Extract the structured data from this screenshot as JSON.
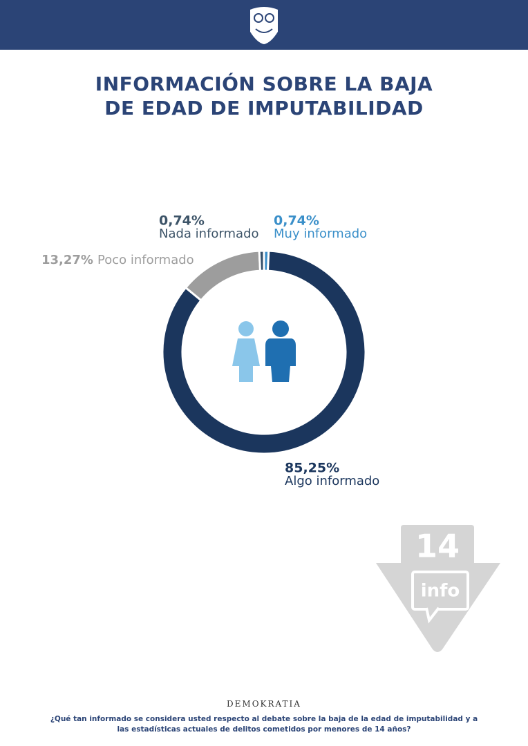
{
  "chart_data": {
    "type": "donut",
    "title": "INFORMACIÓN SOBRE LA BAJA DE EDAD DE IMPUTABILIDAD",
    "categories": [
      "Muy informado",
      "Algo informado",
      "Poco informado",
      "Nada informado"
    ],
    "values": [
      0.74,
      85.25,
      13.27,
      0.74
    ],
    "value_labels": [
      "0,74%",
      "85,25%",
      "13,27%",
      "0,74%"
    ],
    "colors": [
      "#3a8fc9",
      "#1b365d",
      "#9d9d9d",
      "#34506b"
    ]
  },
  "badge": {
    "number": "14",
    "text": "info"
  },
  "brand": "DEMOKRATIA",
  "footnote": "¿Qué tan informado se considera usted respecto al debate sobre la baja de la edad de imputabilidad y a las estadísticas actuales de delitos cometidos por menores de 14 años?"
}
